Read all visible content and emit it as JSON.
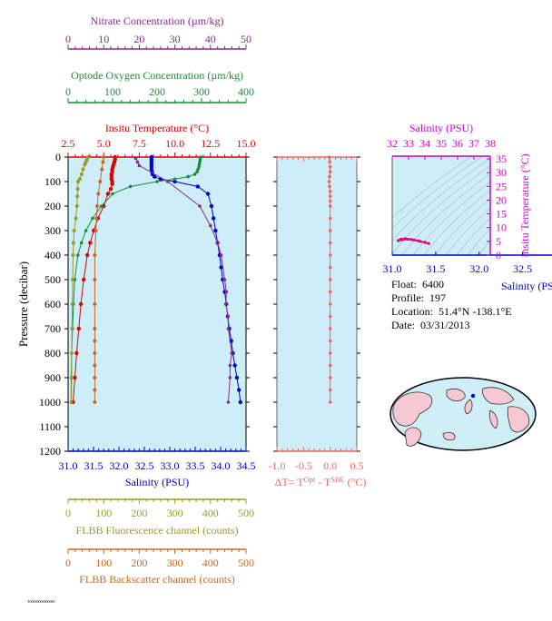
{
  "float_info": {
    "float_label": "Float:",
    "float_value": "6400",
    "profile_label": "Profile:",
    "profile_value": "197",
    "location_label": "Location:",
    "location_value": "51.4°N  -138.1°E",
    "date_label": "Date:",
    "date_value": "03/31/2013"
  },
  "footer_code": "T00000000000000",
  "colors": {
    "nitrate": "#8b2a8b",
    "oxygen": "#1a8a3a",
    "temperature": "#dd0000",
    "salinity": "#0000cc",
    "fluorescence": "#9a9a2a",
    "backscatter": "#cc6622",
    "delta_t": "#ee6666",
    "ts_axis": "#cc00cc",
    "plot_bg": "#cdeef8",
    "ts_track": "#e8007a"
  },
  "chart_data": [
    {
      "type": "line",
      "id": "profile-panel",
      "ylabel": "Pressure (decibar)",
      "y_ticks": [
        0,
        100,
        200,
        300,
        400,
        500,
        600,
        700,
        800,
        900,
        1000,
        1100,
        1200
      ],
      "ylim": [
        0,
        1200
      ],
      "y_inverted": true,
      "axes": {
        "nitrate": {
          "label": "Nitrate Concentration (µm/kg)",
          "ticks": [
            0,
            10,
            20,
            30,
            40,
            50
          ],
          "range": [
            0,
            50
          ]
        },
        "oxygen": {
          "label": "Optode Oxygen Concentration (µm/kg)",
          "ticks": [
            0,
            100,
            200,
            300,
            400
          ],
          "range": [
            0,
            400
          ]
        },
        "temperature": {
          "label": "Insitu Temperature (°C)",
          "ticks": [
            "2.5",
            "5.0",
            "7.5",
            "10.0",
            "12.5",
            "15.0"
          ],
          "range": [
            2.5,
            15.0
          ]
        },
        "salinity": {
          "label": "Salinity (PSU)",
          "ticks": [
            "31.0",
            "31.5",
            "32.0",
            "32.5",
            "33.0",
            "33.5",
            "34.0",
            "34.5"
          ],
          "range": [
            31.0,
            34.5
          ]
        },
        "fluorescence": {
          "label": "FLBB Fluorescence channel (counts)",
          "ticks": [
            0,
            100,
            200,
            300,
            400,
            500
          ],
          "range": [
            0,
            500
          ]
        },
        "backscatter": {
          "label": "FLBB Backscatter channel (counts)",
          "ticks": [
            0,
            100,
            200,
            300,
            400,
            500
          ],
          "range": [
            0,
            500
          ]
        }
      },
      "series": [
        {
          "name": "Salinity",
          "axis": "salinity",
          "pressure": [
            0,
            10,
            20,
            30,
            40,
            50,
            60,
            70,
            80,
            90,
            100,
            120,
            150,
            200,
            250,
            300,
            350,
            400,
            450,
            500,
            550,
            600,
            650,
            700,
            750,
            800,
            850,
            900,
            950,
            1000
          ],
          "values": [
            32.64,
            32.64,
            32.64,
            32.64,
            32.64,
            32.64,
            32.65,
            32.66,
            32.7,
            32.82,
            33.1,
            33.55,
            33.75,
            33.82,
            33.86,
            33.9,
            33.94,
            33.98,
            34.01,
            34.04,
            34.08,
            34.11,
            34.14,
            34.17,
            34.21,
            34.24,
            34.28,
            34.32,
            34.36,
            34.39
          ]
        },
        {
          "name": "Temperature",
          "axis": "temperature",
          "pressure": [
            0,
            10,
            20,
            30,
            40,
            50,
            60,
            70,
            80,
            90,
            100,
            110,
            130,
            150,
            200,
            250,
            300,
            350,
            400,
            500,
            600,
            700,
            800,
            900,
            1000
          ],
          "values": [
            5.8,
            5.8,
            5.75,
            5.7,
            5.65,
            5.6,
            5.6,
            5.55,
            5.55,
            5.55,
            5.6,
            5.6,
            5.5,
            5.3,
            5.0,
            4.6,
            4.3,
            4.05,
            3.85,
            3.6,
            3.4,
            3.25,
            3.1,
            2.98,
            2.85
          ]
        },
        {
          "name": "Oxygen",
          "axis": "oxygen",
          "pressure": [
            0,
            10,
            20,
            30,
            40,
            50,
            60,
            70,
            80,
            90,
            100,
            120,
            150,
            200,
            250,
            300,
            350,
            400,
            500,
            600,
            700,
            800,
            900,
            1000
          ],
          "values": [
            298,
            297,
            296,
            295,
            294,
            292,
            290,
            285,
            270,
            240,
            200,
            140,
            100,
            75,
            55,
            40,
            30,
            22,
            15,
            12,
            10,
            8,
            7,
            7
          ]
        },
        {
          "name": "Nitrate",
          "axis": "nitrate",
          "pressure": [
            5,
            20,
            35,
            100,
            200,
            280,
            350,
            400,
            500,
            550,
            600,
            650,
            700,
            800,
            850,
            900,
            1000
          ],
          "values": [
            19,
            19.5,
            20,
            28,
            37,
            40,
            42,
            43,
            44,
            44.5,
            44.3,
            45,
            45,
            46,
            45.5,
            45.5,
            45
          ]
        },
        {
          "name": "Fluorescence",
          "axis": "fluorescence",
          "pressure": [
            0,
            10,
            20,
            30,
            50,
            70,
            90,
            100,
            130,
            160,
            200,
            250,
            300,
            350,
            400,
            500,
            600,
            700,
            800,
            900,
            1000
          ],
          "values": [
            55,
            53,
            50,
            47,
            42,
            38,
            33,
            28,
            27,
            26,
            25,
            22,
            17,
            15,
            14,
            13,
            12,
            11,
            10,
            10,
            9
          ]
        },
        {
          "name": "Backscatter",
          "axis": "backscatter",
          "pressure": [
            0,
            20,
            50,
            100,
            150,
            200,
            250,
            300,
            400,
            500,
            600,
            700,
            750,
            800,
            850,
            900,
            950,
            1000
          ],
          "values": [
            100,
            98,
            95,
            90,
            85,
            82,
            80,
            78,
            75,
            75,
            75,
            75,
            75,
            75,
            75,
            75,
            75,
            75
          ]
        }
      ]
    },
    {
      "type": "scatter",
      "id": "delta-t-panel",
      "xlabel": "ΔT= T^Opt - T^SBE (°C)",
      "x_ticks": [
        "-1.0",
        "-0.5",
        "0.0",
        "0.5"
      ],
      "xlim": [
        -1.0,
        0.5
      ],
      "ylim": [
        0,
        1200
      ],
      "pressure": [
        0,
        20,
        40,
        60,
        80,
        100,
        120,
        140,
        160,
        180,
        200,
        250,
        300,
        350,
        400,
        450,
        500,
        550,
        600,
        650,
        700,
        750,
        800,
        850,
        900,
        950,
        1000
      ],
      "values": [
        -0.02,
        -0.01,
        0.0,
        0.0,
        -0.01,
        -0.02,
        -0.01,
        0.0,
        0.0,
        0.0,
        0.0,
        0.0,
        0.0,
        0.0,
        0.0,
        0.0,
        0.0,
        0.0,
        0.0,
        0.0,
        0.0,
        0.0,
        0.0,
        0.0,
        0.0,
        0.0,
        0.0
      ]
    },
    {
      "type": "line",
      "id": "ts-panel",
      "xlabel_bottom": "Salinity (PSU)",
      "x_ticks_bottom": [
        "31.0",
        "31.5",
        "32.0",
        "32.5"
      ],
      "xlim_bottom": [
        31.0,
        32.5
      ],
      "xlabel_top": "Salinity (PSU)",
      "x_ticks_top": [
        "32",
        "33",
        "34",
        "35",
        "36",
        "37",
        "38"
      ],
      "ylabel": "Insitu Temperature (°C)",
      "y_ticks": [
        0,
        5,
        10,
        15,
        20,
        25,
        30,
        35
      ],
      "ylim": [
        0,
        36
      ],
      "track_salinity": [
        31.07,
        31.12,
        31.18,
        31.25,
        31.32,
        31.38,
        31.42,
        31.38,
        31.3,
        31.22,
        31.15,
        31.1,
        31.07
      ],
      "track_temperature": [
        5.3,
        5.6,
        5.8,
        5.5,
        5.0,
        4.6,
        4.2,
        4.6,
        5.2,
        5.7,
        6.0,
        5.8,
        5.3
      ]
    }
  ]
}
